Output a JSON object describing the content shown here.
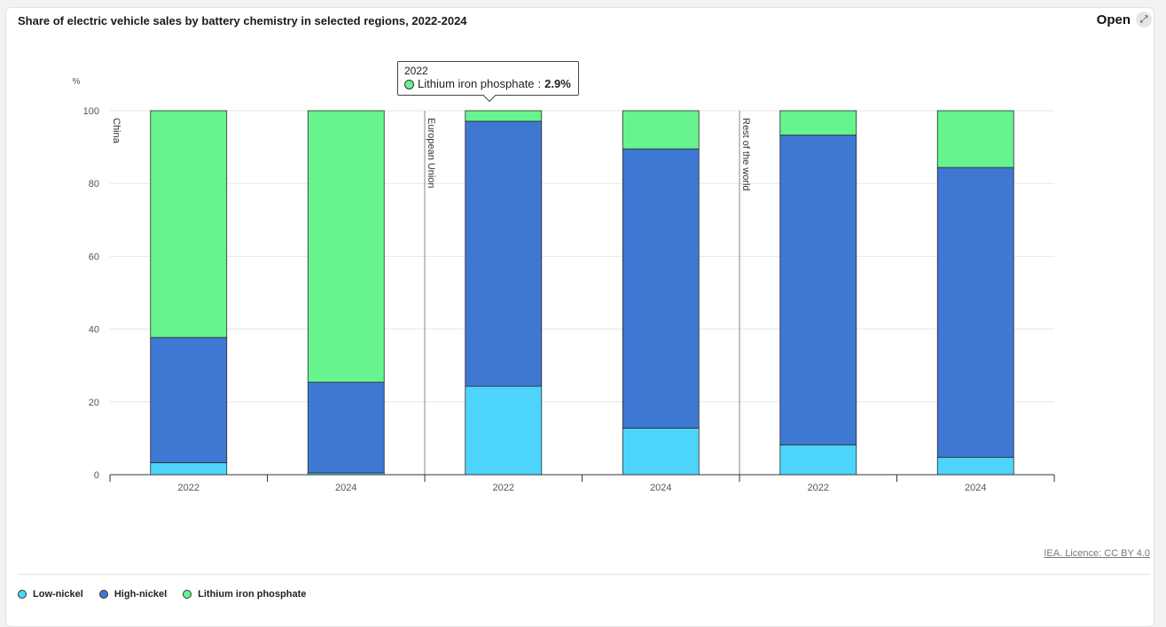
{
  "header": {
    "title": "Share of electric vehicle sales by battery chemistry in selected regions, 2022-2024",
    "open_label": "Open"
  },
  "credit": "IEA. Licence: CC BY 4.0",
  "tooltip": {
    "year": "2022",
    "series": "Lithium iron phosphate",
    "value": "2.9%"
  },
  "colors": {
    "low_nickel": "#4dd4fb",
    "high_nickel": "#3e78d3",
    "lfp": "#67f38e",
    "grid": "#e6e6e6",
    "axis": "#333333"
  },
  "chart_data": {
    "type": "bar",
    "stacked": true,
    "ylabel": "%",
    "ylim": [
      0,
      100
    ],
    "yticks": [
      0,
      20,
      40,
      60,
      80,
      100
    ],
    "grid": true,
    "legend_placement": "bottom-left",
    "groups": [
      {
        "name": "China",
        "categories": [
          "2022",
          "2024"
        ]
      },
      {
        "name": "European Union",
        "categories": [
          "2022",
          "2024"
        ]
      },
      {
        "name": "Rest of the world",
        "categories": [
          "2022",
          "2024"
        ]
      }
    ],
    "categories": [
      "2022",
      "2024",
      "2022",
      "2024",
      "2022",
      "2024"
    ],
    "series": [
      {
        "name": "Low-nickel",
        "values": [
          3.3,
          0.5,
          24.3,
          12.8,
          8.2,
          4.8
        ]
      },
      {
        "name": "High-nickel",
        "values": [
          34.4,
          24.9,
          72.8,
          76.7,
          85.1,
          79.6
        ]
      },
      {
        "name": "Lithium iron phosphate",
        "values": [
          62.3,
          74.6,
          2.9,
          10.5,
          6.7,
          15.6
        ]
      }
    ]
  }
}
